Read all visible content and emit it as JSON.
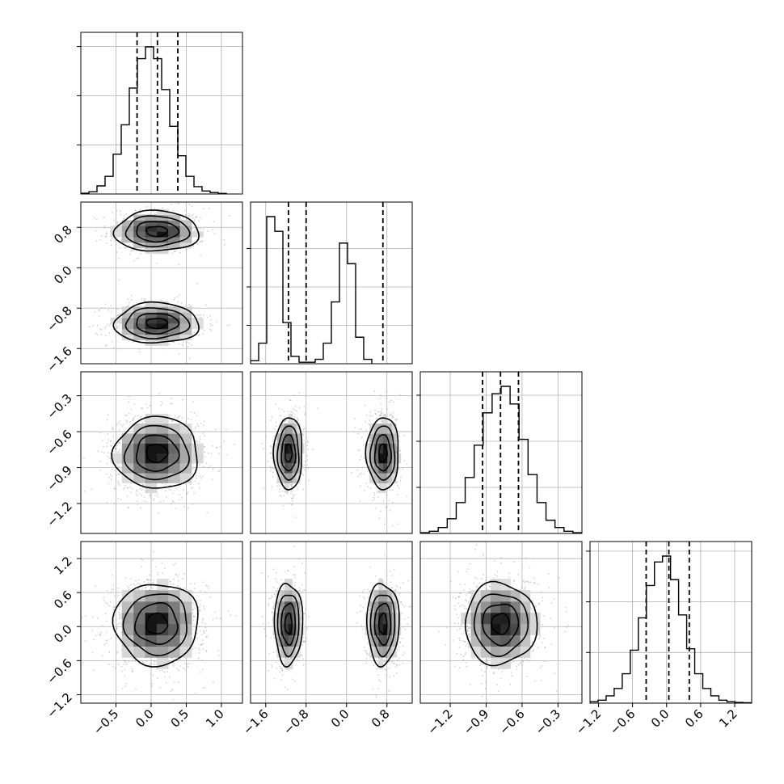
{
  "chart_data": {
    "type": "corner",
    "parameters": [
      {
        "name": "",
        "axis_range": [
          -1.0,
          1.3
        ],
        "ticks": [
          -0.5,
          0.0,
          0.5,
          1.0
        ],
        "tick_labels": [
          "−0.5",
          "0.0",
          "0.5",
          "1.0"
        ],
        "histogram": {
          "bin_start": -1.0,
          "bin_width": 0.115,
          "counts": [
            0.5,
            1.5,
            5.5,
            12,
            27,
            47,
            72,
            92,
            100,
            92,
            71,
            46,
            26,
            12,
            5,
            2,
            1,
            0.4
          ],
          "y_ticks_fraction": [
            0.32,
            0.64,
            0.96
          ]
        },
        "quantiles": [
          -0.2,
          0.09,
          0.38
        ]
      },
      {
        "name": "",
        "axis_range": [
          -1.9,
          1.3
        ],
        "ticks": [
          -1.6,
          -0.8,
          0.0,
          0.8
        ],
        "tick_labels": [
          "−1.6",
          "−0.8",
          "0.0",
          "0.8"
        ],
        "histogram": {
          "bin_start": -1.9,
          "bin_width": 0.16,
          "counts": [
            2,
            14,
            100,
            90,
            28,
            5,
            1,
            1,
            3,
            14,
            42,
            82,
            68,
            18,
            3
          ],
          "y_ticks_fraction": [
            0.25,
            0.5,
            0.75
          ]
        },
        "quantiles": [
          -1.15,
          -0.8,
          0.72
        ]
      },
      {
        "name": "",
        "axis_range": [
          -1.45,
          -0.1
        ],
        "ticks": [
          -1.2,
          -0.9,
          -0.6,
          -0.3
        ],
        "tick_labels": [
          "−1.2",
          "−0.9",
          "−0.6",
          "−0.3"
        ],
        "histogram": {
          "bin_start": -1.45,
          "bin_width": 0.075,
          "counts": [
            0.5,
            1.5,
            4,
            10,
            21,
            38,
            60,
            82,
            95,
            100,
            88,
            64,
            40,
            21,
            9,
            4,
            1.5,
            0.5
          ],
          "y_ticks_fraction": [
            0.3,
            0.6,
            0.9
          ]
        },
        "quantiles": [
          -0.93,
          -0.78,
          -0.63
        ]
      },
      {
        "name": "",
        "axis_range": [
          -1.35,
          1.5
        ],
        "ticks": [
          -1.2,
          -0.6,
          0.0,
          0.6,
          1.2
        ],
        "tick_labels": [
          "−1.2",
          "−0.6",
          "0.0",
          "0.6",
          "1.2"
        ],
        "histogram": {
          "bin_start": -1.35,
          "bin_width": 0.142,
          "counts": [
            1,
            2,
            5,
            10,
            20,
            36,
            58,
            80,
            96,
            100,
            84,
            60,
            37,
            20,
            10,
            5,
            2,
            1,
            0.5,
            0.3
          ],
          "y_ticks_fraction": [
            0.33,
            0.66,
            0.99
          ]
        },
        "quantiles": [
          -0.36,
          0.04,
          0.4
        ]
      }
    ],
    "pairs": [
      {
        "x_param": 0,
        "y_param": 1,
        "modes": [
          {
            "center": [
              0.08,
              0.72
            ],
            "sigma": [
              0.3,
              0.2
            ]
          },
          {
            "center": [
              0.08,
              -1.1
            ],
            "sigma": [
              0.3,
              0.2
            ]
          }
        ]
      },
      {
        "x_param": 0,
        "y_param": 2,
        "modes": [
          {
            "center": [
              0.08,
              -0.78
            ],
            "sigma": [
              0.3,
              0.15
            ]
          }
        ]
      },
      {
        "x_param": 1,
        "y_param": 2,
        "modes": [
          {
            "center": [
              -1.15,
              -0.78
            ],
            "sigma": [
              0.14,
              0.15
            ]
          },
          {
            "center": [
              0.72,
              -0.78
            ],
            "sigma": [
              0.16,
              0.15
            ]
          }
        ]
      },
      {
        "x_param": 0,
        "y_param": 3,
        "modes": [
          {
            "center": [
              0.08,
              0.05
            ],
            "sigma": [
              0.3,
              0.36
            ]
          }
        ]
      },
      {
        "x_param": 1,
        "y_param": 3,
        "modes": [
          {
            "center": [
              -1.15,
              0.05
            ],
            "sigma": [
              0.14,
              0.36
            ]
          },
          {
            "center": [
              0.72,
              0.05
            ],
            "sigma": [
              0.16,
              0.36
            ]
          }
        ]
      },
      {
        "x_param": 2,
        "y_param": 3,
        "modes": [
          {
            "center": [
              -0.78,
              0.05
            ],
            "sigma": [
              0.15,
              0.36
            ]
          }
        ]
      }
    ],
    "contour_levels_sigma": [
      0.5,
      1.0,
      1.5,
      2.0
    ],
    "grid": true,
    "title": "",
    "legend": "none"
  }
}
